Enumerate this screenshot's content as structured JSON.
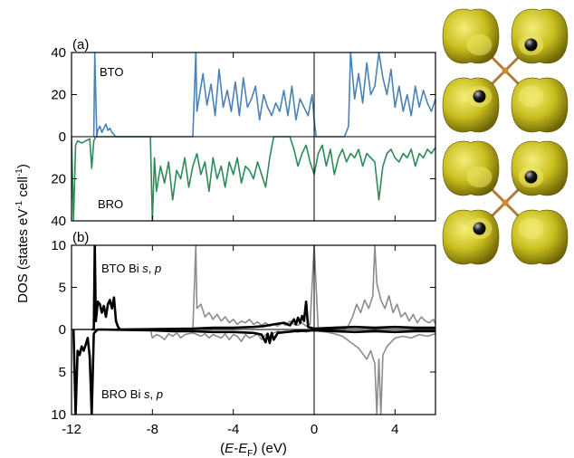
{
  "chart_data": {
    "type": "line",
    "xlabel_parts": [
      "(",
      "E",
      "-",
      "E",
      "F",
      ")  (eV)"
    ],
    "ylabel_parts": [
      "DOS (states eV",
      "-1",
      " cell",
      "-1",
      ")"
    ],
    "xlim": [
      -12,
      6
    ],
    "x_ticks": [
      "-12",
      "-8",
      "-4",
      "0",
      "4"
    ],
    "x_tick_values": [
      -12,
      -8,
      -4,
      0,
      4
    ],
    "fermi_level": 0,
    "colors": {
      "BTO": "#4a82b6",
      "BRO": "#2e8b57",
      "Bi_BTO": "#000000",
      "Bi_BRO": "#000000",
      "other_BTO": "#8c8c8c",
      "other_BRO": "#8c8c8c",
      "isosurface": "#c8be1e",
      "bond": "#b07a3a",
      "atom": "#1a1a1a"
    },
    "panels": [
      {
        "label": "(a)",
        "y_ticks": [
          "40",
          "20",
          "0",
          "20",
          "40"
        ],
        "ylim_top": 40,
        "ylim_bottom": 40,
        "series": [
          {
            "name": "BTO",
            "direction": "up",
            "x": [
              -10.9,
              -10.85,
              -10.75,
              -10.7,
              -10.6,
              -10.5,
              -10.4,
              -10.3,
              -10.2,
              -10.1,
              -10.0,
              -9.9,
              -9.8,
              -9.7,
              -9.6,
              -6.0,
              -5.85,
              -5.8,
              -5.7,
              -5.5,
              -5.3,
              -5.1,
              -4.9,
              -4.7,
              -4.5,
              -4.3,
              -4.1,
              -3.9,
              -3.7,
              -3.5,
              -3.3,
              -3.1,
              -2.9,
              -2.7,
              -2.5,
              -2.3,
              -2.1,
              -1.9,
              -1.7,
              -1.5,
              -1.3,
              -1.1,
              -0.9,
              -0.7,
              -0.5,
              -0.3,
              -0.1,
              0.0,
              0.1,
              0.3,
              1.5,
              1.7,
              1.8,
              2.0,
              2.2,
              2.4,
              2.6,
              2.8,
              3.0,
              3.2,
              3.4,
              3.6,
              3.8,
              4.0,
              4.2,
              4.4,
              4.6,
              4.8,
              5.0,
              5.2,
              5.4,
              5.6,
              5.8,
              6.0
            ],
            "y": [
              0,
              40,
              0,
              3,
              5,
              2,
              4,
              6,
              3,
              4,
              2,
              1,
              0,
              0,
              0,
              0,
              40,
              12,
              18,
              30,
              15,
              25,
              10,
              32,
              14,
              22,
              12,
              26,
              10,
              28,
              14,
              18,
              24,
              8,
              20,
              14,
              10,
              16,
              12,
              22,
              10,
              24,
              8,
              18,
              14,
              10,
              20,
              8,
              0,
              0,
              0,
              5,
              40,
              18,
              30,
              16,
              35,
              20,
              24,
              40,
              28,
              20,
              32,
              14,
              24,
              12,
              20,
              10,
              24,
              14,
              22,
              16,
              12,
              18
            ]
          },
          {
            "name": "BRO",
            "direction": "down",
            "x": [
              -12.0,
              -11.9,
              -11.8,
              -11.7,
              -11.5,
              -11.3,
              -11.1,
              -11.0,
              -10.9,
              -10.8,
              -10.5,
              -10.0,
              -9.5,
              -9.0,
              -8.5,
              -8.1,
              -8.0,
              -7.9,
              -7.8,
              -7.6,
              -7.4,
              -7.2,
              -7.0,
              -6.8,
              -6.6,
              -6.4,
              -6.2,
              -6.0,
              -5.8,
              -5.6,
              -5.4,
              -5.2,
              -5.0,
              -4.8,
              -4.6,
              -4.4,
              -4.2,
              -4.0,
              -3.8,
              -3.6,
              -3.4,
              -3.2,
              -3.0,
              -2.8,
              -2.6,
              -2.4,
              -2.2,
              -2.0,
              -1.8,
              -1.6,
              -1.4,
              -1.2,
              -1.0,
              -0.8,
              -0.6,
              -0.4,
              -0.2,
              0.0,
              0.2,
              0.4,
              0.6,
              0.8,
              1.0,
              1.2,
              1.4,
              1.6,
              1.8,
              2.0,
              2.2,
              2.4,
              2.6,
              2.8,
              3.0,
              3.2,
              3.4,
              3.6,
              3.8,
              4.0,
              4.2,
              4.4,
              4.6,
              4.8,
              5.0,
              5.2,
              5.4,
              5.6,
              5.8,
              6.0
            ],
            "y": [
              0,
              40,
              4,
              2,
              3,
              2,
              1,
              15,
              2,
              0,
              0,
              0,
              0,
              0,
              0,
              0,
              40,
              10,
              26,
              14,
              22,
              12,
              30,
              16,
              20,
              10,
              24,
              14,
              8,
              18,
              12,
              26,
              10,
              20,
              14,
              24,
              12,
              18,
              10,
              22,
              14,
              16,
              20,
              12,
              18,
              24,
              10,
              0,
              0,
              0,
              0,
              0,
              6,
              14,
              8,
              4,
              12,
              18,
              8,
              4,
              14,
              6,
              18,
              10,
              6,
              12,
              8,
              10,
              6,
              14,
              8,
              10,
              12,
              30,
              14,
              8,
              6,
              10,
              12,
              8,
              10,
              6,
              14,
              8,
              10,
              6,
              8,
              5
            ]
          }
        ]
      },
      {
        "label": "(b)",
        "y_ticks": [
          "10",
          "5",
          "0",
          "5",
          "10"
        ],
        "ylim_top": 10,
        "ylim_bottom": 10,
        "series": [
          {
            "name": "BTO Bi s, p",
            "label_parts": [
              "BTO Bi ",
              "s",
              ", ",
              "p"
            ],
            "direction": "up",
            "x": [
              -11.0,
              -10.9,
              -10.85,
              -10.8,
              -10.75,
              -10.7,
              -10.6,
              -10.5,
              -10.4,
              -10.3,
              -10.2,
              -10.1,
              -10.0,
              -9.9,
              -9.8,
              -9.7,
              -9.6,
              -6.0,
              -5.0,
              -4.0,
              -3.0,
              -2.5,
              -2.0,
              -1.5,
              -1.2,
              -1.0,
              -0.9,
              -0.8,
              -0.7,
              -0.6,
              -0.5,
              -0.4,
              -0.3,
              0.0,
              1.0,
              2.0,
              3.0,
              4.0,
              5.0,
              6.0
            ],
            "y": [
              0,
              0,
              10,
              1,
              2,
              3.3,
              3.0,
              2.0,
              2.8,
              1.5,
              3.0,
              3.5,
              2.5,
              3.8,
              1.0,
              0.3,
              0,
              0.1,
              0.2,
              0.2,
              0.3,
              0.4,
              0.6,
              0.8,
              0.5,
              1.2,
              0.6,
              1.4,
              0.8,
              1.6,
              1.0,
              3.3,
              0.3,
              0.1,
              0.2,
              0.3,
              0.2,
              0.3,
              0.2,
              0.2
            ]
          },
          {
            "name": "BRO Bi s, p",
            "label_parts": [
              "BRO Bi ",
              "s",
              ", ",
              "p"
            ],
            "direction": "down",
            "x": [
              -11.9,
              -11.8,
              -11.7,
              -11.6,
              -11.5,
              -11.4,
              -11.3,
              -11.2,
              -11.1,
              -11.0,
              -10.9,
              -10.8,
              -10.7,
              -8.0,
              -7.0,
              -6.0,
              -5.0,
              -4.0,
              -3.0,
              -2.6,
              -2.4,
              -2.3,
              -2.2,
              -2.1,
              -2.0,
              -1.8,
              -1.0,
              0.0,
              1.0,
              2.0,
              3.0,
              4.0,
              5.0,
              6.0
            ],
            "y": [
              0,
              10,
              2.5,
              3.0,
              2.0,
              2.5,
              1.8,
              1.0,
              3.2,
              10,
              0.5,
              0.2,
              0,
              0.1,
              0.2,
              0.2,
              0.3,
              0.3,
              0.4,
              0.6,
              1.5,
              0.5,
              1.6,
              0.4,
              1.2,
              0.4,
              0.2,
              0.1,
              0.2,
              0.3,
              0.2,
              0.3,
              0.2,
              0.2
            ]
          },
          {
            "name": "other_up",
            "direction": "up",
            "x": [
              -12.0,
              -10.0,
              -8.0,
              -6.0,
              -5.85,
              -5.8,
              -5.6,
              -5.4,
              -5.2,
              -5.0,
              -4.8,
              -4.6,
              -4.4,
              -4.2,
              -4.0,
              -3.8,
              -3.6,
              -3.4,
              -3.2,
              -3.0,
              -2.8,
              -2.6,
              -2.4,
              -2.2,
              -2.0,
              -1.8,
              -1.6,
              -1.4,
              -1.2,
              -1.0,
              -0.8,
              -0.6,
              -0.4,
              -0.2,
              0.0,
              0.2,
              1.5,
              1.7,
              1.9,
              2.1,
              2.3,
              2.5,
              2.7,
              2.9,
              3.0,
              3.1,
              3.3,
              3.5,
              3.7,
              3.9,
              4.1,
              4.3,
              4.5,
              4.7,
              4.9,
              5.1,
              5.3,
              5.5,
              5.7,
              5.9,
              6.0
            ],
            "y": [
              0,
              0,
              0,
              0,
              10,
              2.5,
              3.0,
              1.5,
              2.0,
              1.2,
              1.8,
              1.0,
              1.5,
              0.8,
              1.2,
              0.6,
              1.0,
              0.8,
              1.2,
              0.6,
              0.9,
              0.5,
              0.8,
              0.4,
              0.6,
              0.4,
              0.8,
              0.5,
              1.0,
              0.6,
              0.5,
              0.8,
              0.4,
              0.6,
              10,
              0,
              0,
              0.5,
              1.5,
              3.0,
              2.0,
              3.5,
              2.5,
              4.0,
              10,
              5.5,
              3.5,
              2.5,
              4.0,
              2.0,
              3.0,
              1.5,
              2.0,
              1.0,
              1.8,
              0.8,
              1.5,
              1.0,
              0.8,
              1.2,
              0.6
            ]
          },
          {
            "name": "other_down",
            "direction": "down",
            "x": [
              -12.0,
              -10.0,
              -8.1,
              -8.0,
              -7.8,
              -7.6,
              -7.4,
              -7.2,
              -7.0,
              -6.8,
              -6.6,
              -6.4,
              -6.2,
              -6.0,
              -5.8,
              -5.6,
              -5.4,
              -5.2,
              -5.0,
              -4.8,
              -4.6,
              -4.4,
              -4.2,
              -4.0,
              -3.8,
              -3.6,
              -3.4,
              -3.2,
              -3.0,
              -2.8,
              -2.6,
              -2.4,
              -2.2,
              -2.0,
              -1.8,
              -1.6,
              -1.4,
              -1.2,
              -1.0,
              -0.8,
              -0.6,
              -0.4,
              -0.2,
              0.0,
              0.2,
              0.6,
              1.0,
              1.4,
              1.8,
              2.2,
              2.6,
              2.8,
              3.0,
              3.1,
              3.2,
              3.3,
              3.4,
              3.6,
              3.8,
              4.0,
              4.4,
              4.8,
              5.2,
              5.6,
              6.0
            ],
            "y": [
              0,
              0,
              0,
              1.0,
              0.6,
              0.8,
              1.2,
              0.5,
              0.8,
              0.4,
              1.0,
              0.6,
              0.5,
              0.4,
              0.6,
              0.8,
              0.5,
              1.0,
              0.6,
              0.8,
              1.0,
              0.5,
              1.2,
              0.6,
              0.8,
              1.4,
              0.6,
              1.0,
              0.8,
              0.5,
              1.2,
              0.6,
              0.8,
              0.4,
              0.2,
              0.3,
              0.2,
              0.3,
              0.2,
              0.3,
              0.2,
              0.3,
              0.2,
              0.1,
              0.2,
              0.3,
              0.5,
              0.8,
              1.5,
              2.2,
              3.5,
              2.5,
              4.0,
              10,
              3.5,
              10,
              3.0,
              2.0,
              1.5,
              1.0,
              0.8,
              1.0,
              0.6,
              0.8,
              0.5
            ]
          }
        ]
      }
    ]
  }
}
